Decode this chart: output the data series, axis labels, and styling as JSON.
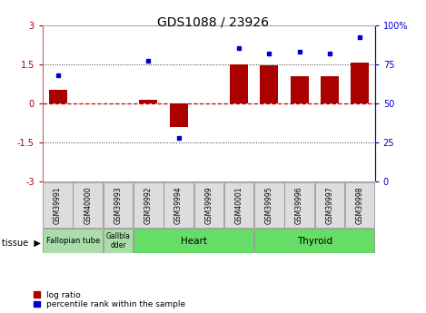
{
  "title": "GDS1088 / 23926",
  "samples": [
    "GSM39991",
    "GSM40000",
    "GSM39993",
    "GSM39992",
    "GSM39994",
    "GSM39999",
    "GSM40001",
    "GSM39995",
    "GSM39996",
    "GSM39997",
    "GSM39998"
  ],
  "log_ratio": [
    0.5,
    0.0,
    0.0,
    0.15,
    -0.9,
    0.0,
    1.5,
    1.45,
    1.05,
    1.05,
    1.55
  ],
  "percentile": [
    68,
    null,
    null,
    77,
    28,
    null,
    85,
    82,
    83,
    82,
    92
  ],
  "bar_color": "#aa0000",
  "dot_color": "#0000cc",
  "ylim": [
    -3,
    3
  ],
  "y2lim": [
    0,
    100
  ],
  "yticks_left": [
    -3,
    -1.5,
    0,
    1.5,
    3
  ],
  "yticks_right": [
    0,
    25,
    50,
    75,
    100
  ],
  "hline_y": [
    1.5,
    -1.5
  ],
  "hline0_color": "#cc0000",
  "hline_color": "#333333",
  "bg_color": "#ffffff",
  "tissue_groups": [
    {
      "label": "Fallopian tube",
      "start": 0,
      "end": 2,
      "color": "#aaddaa",
      "fontsize": 6
    },
    {
      "label": "Gallbla\ndder",
      "start": 2,
      "end": 3,
      "color": "#aaddaa",
      "fontsize": 5.5
    },
    {
      "label": "Heart",
      "start": 3,
      "end": 7,
      "color": "#66dd66",
      "fontsize": 7.5
    },
    {
      "label": "Thyroid",
      "start": 7,
      "end": 11,
      "color": "#66dd66",
      "fontsize": 7.5
    }
  ],
  "title_fontsize": 10,
  "tick_fontsize": 7,
  "sample_fontsize": 5.5,
  "legend_fontsize": 6.5
}
